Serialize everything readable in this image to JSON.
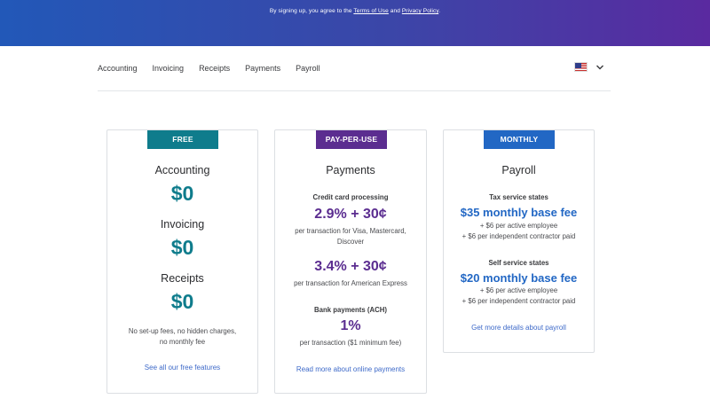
{
  "banner": {
    "prefix": "By signing up, you agree to the",
    "terms_link": "Terms of Use",
    "conjunction": "and",
    "privacy_link": "Privacy Policy",
    "suffix": "."
  },
  "nav": {
    "items": [
      {
        "label": "Accounting"
      },
      {
        "label": "Invoicing"
      },
      {
        "label": "Receipts"
      },
      {
        "label": "Payments"
      },
      {
        "label": "Payroll"
      }
    ],
    "region_flag": "us-flag-icon"
  },
  "plans": [
    {
      "tag": "FREE",
      "tag_color": "#0f7c8c",
      "sections": [
        {
          "title": "Accounting",
          "price": "$0"
        },
        {
          "title": "Invoicing",
          "price": "$0"
        },
        {
          "title": "Receipts",
          "price": "$0"
        }
      ],
      "note_line1": "No set-up fees, no hidden charges,",
      "note_line2": "no monthly fee",
      "link": "See all our free features"
    },
    {
      "tag": "PAY-PER-USE",
      "tag_color": "#5b2d90",
      "title": "Payments",
      "cc_label": "Credit card processing",
      "cc_price": "2.9% + 30¢",
      "cc_desc_line1": "per transaction for Visa, Mastercard,",
      "cc_desc_line2": "Discover",
      "amex_price": "3.4% + 30¢",
      "amex_desc": "per transaction for American Express",
      "ach_label": "Bank payments (ACH)",
      "ach_price": "1%",
      "ach_desc": "per transaction ($1 minimum fee)",
      "link": "Read more about online payments"
    },
    {
      "tag": "MONTHLY",
      "tag_color": "#2267c4",
      "title": "Payroll",
      "tax_label": "Tax service states",
      "tax_price": "$35 monthly base fee",
      "tax_line1": "+ $6 per active employee",
      "tax_line2": "+ $6 per independent contractor paid",
      "self_label": "Self service states",
      "self_price": "$20 monthly base fee",
      "self_line1": "+ $6 per active employee",
      "self_line2": "+ $6 per independent contractor paid",
      "link": "Get more details about payroll"
    }
  ]
}
